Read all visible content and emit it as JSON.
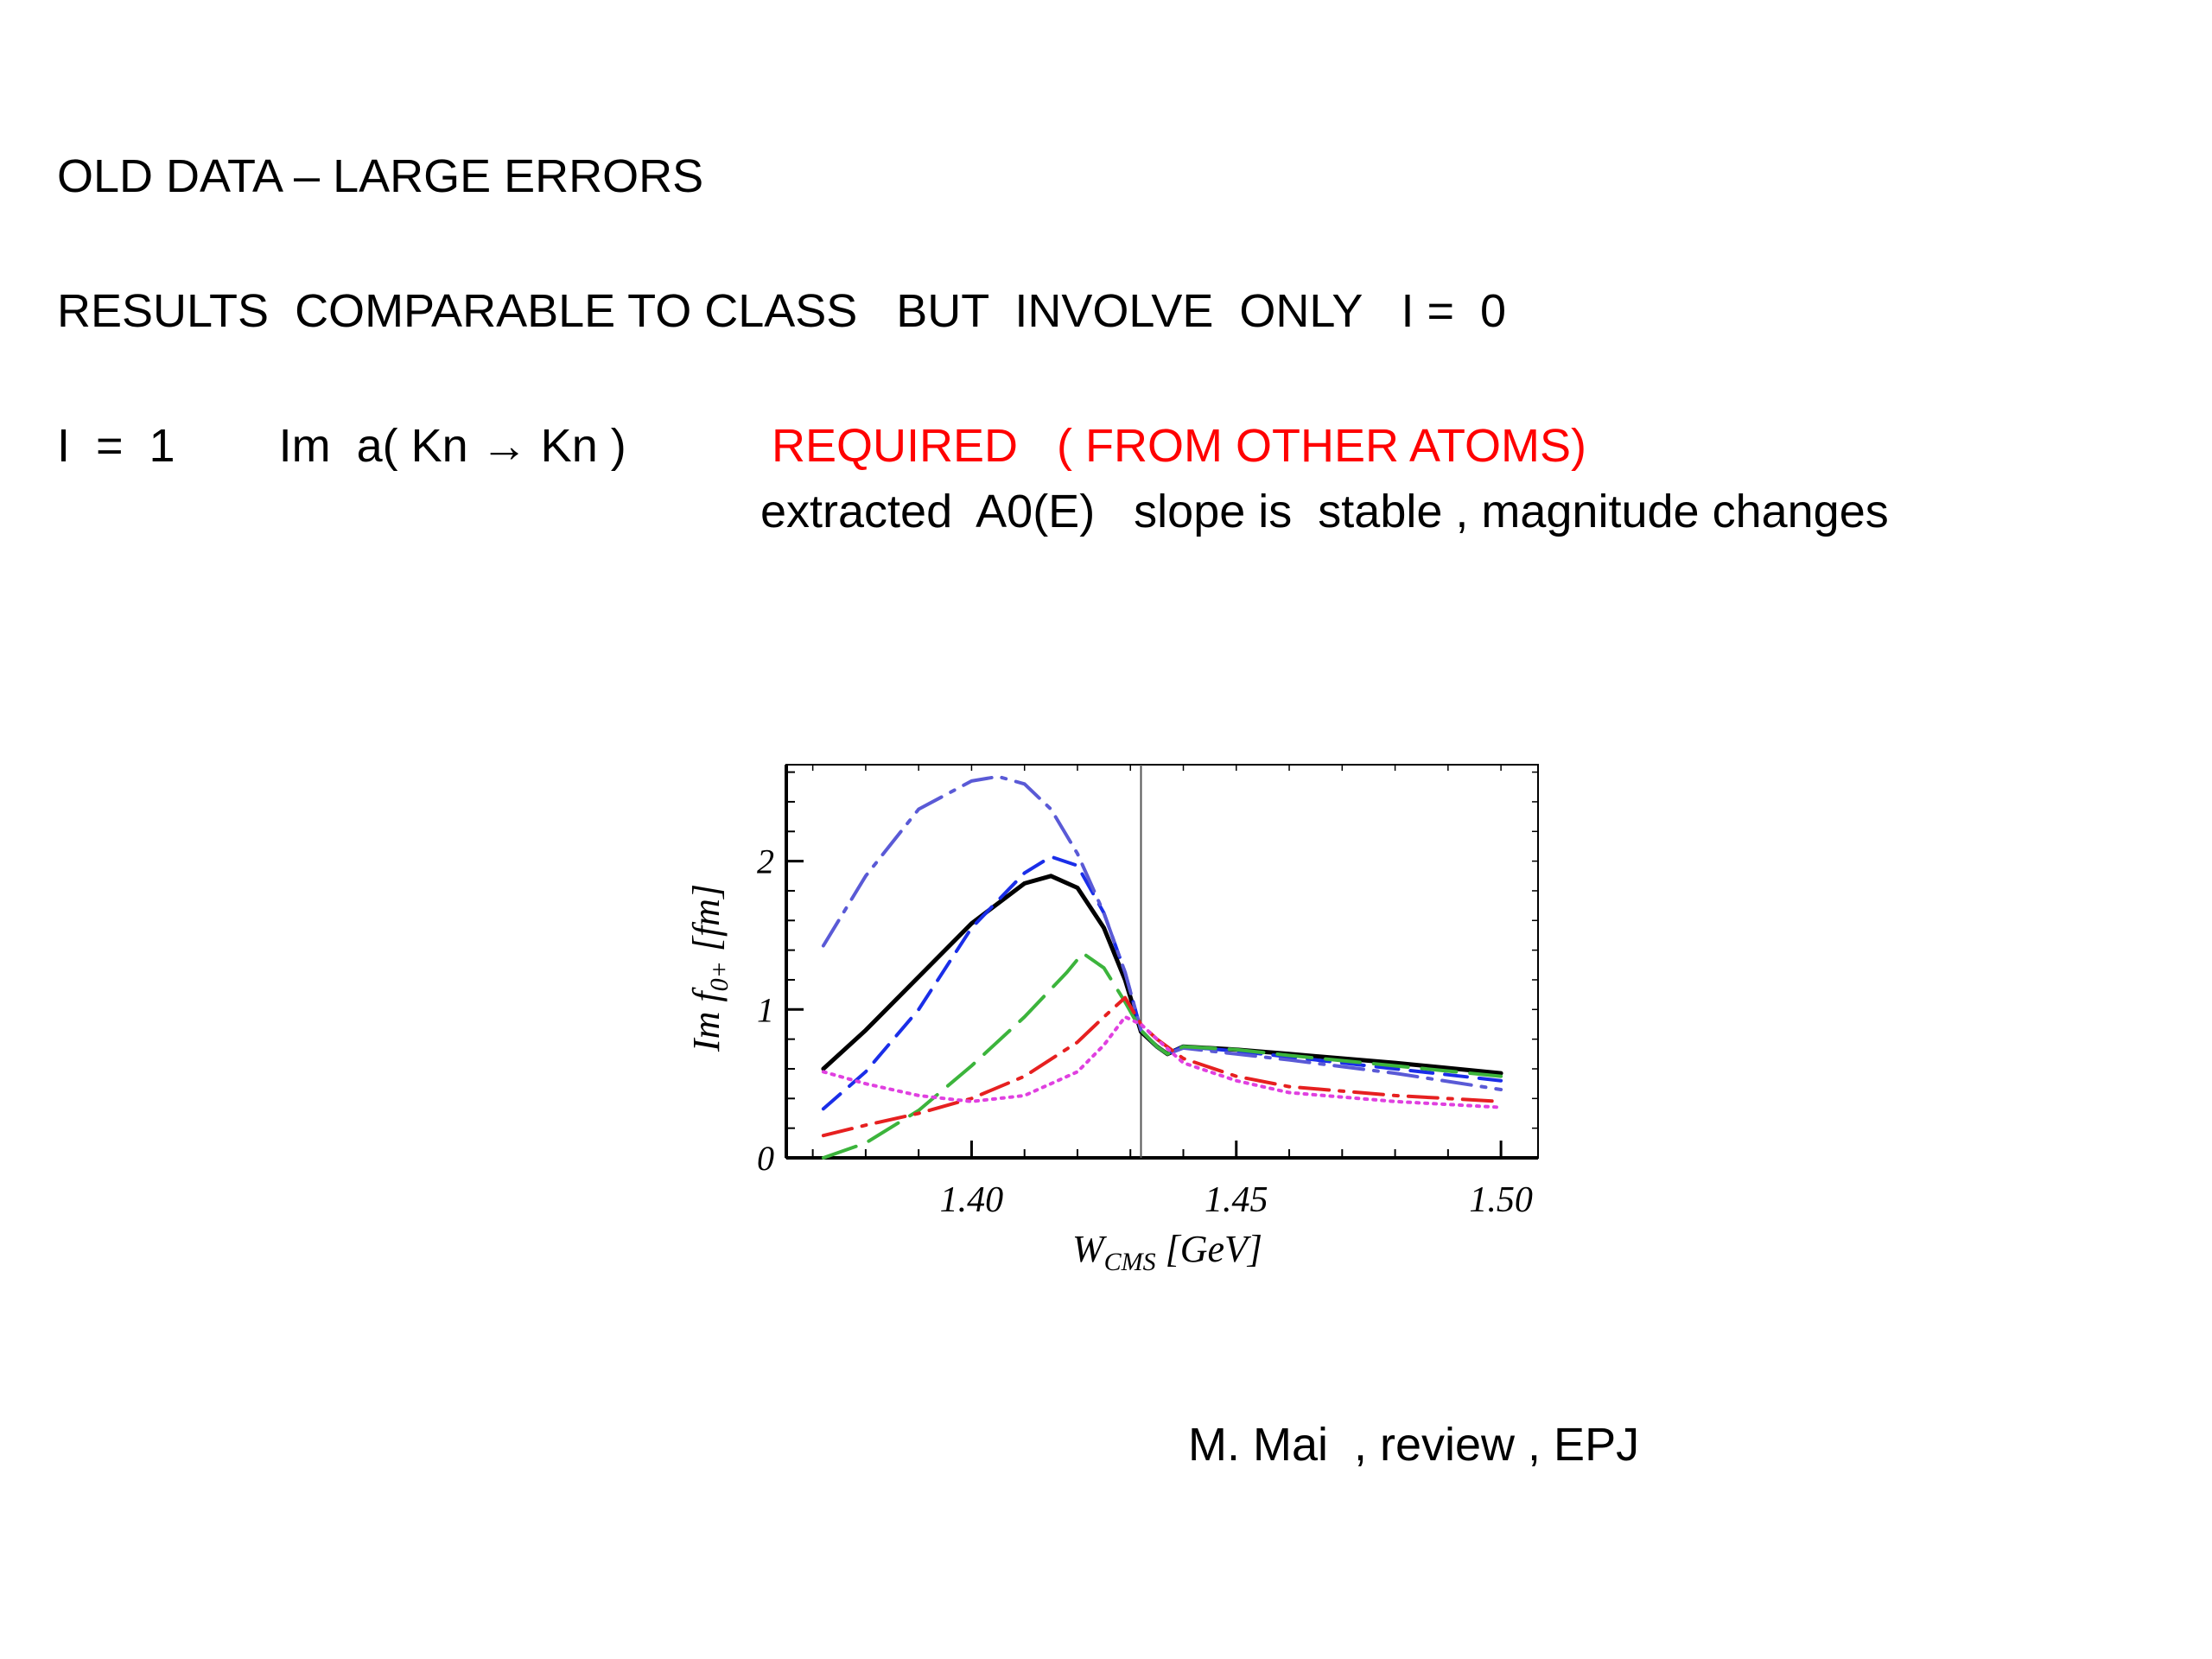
{
  "slide": {
    "line1": "OLD DATA – LARGE ERRORS",
    "line2": "RESULTS  COMPARABLE TO CLASS   BUT  INVOLVE  ONLY   I =  0",
    "line3_left": "I  =  1        Im  a( Kn → Kn )",
    "line3_required": "REQUIRED   ( FROM OTHER ATOMS)",
    "line4": "extracted  A0(E)   slope is  stable , magnitude changes",
    "citation": "M. Mai  , review , EPJ"
  },
  "colors": {
    "text": "#000000",
    "required": "#ff0000",
    "black_solid": "#000000",
    "blue_dashed": "#1a2ee8",
    "slate_dashdot": "#5a5ad6",
    "green_longdash": "#3cb43c",
    "red_dashdot": "#e62020",
    "magenta_dotted": "#e040e0"
  },
  "chart_data": {
    "type": "line",
    "ylabel_prefix": "Im ",
    "ylabel_math": "f",
    "ylabel_sub": "0+",
    "ylabel_suffix": " [fm]",
    "xlabel_main": "W",
    "xlabel_sub": "CMS",
    "xlabel_suffix": " [GeV]",
    "xlim": [
      1.365,
      1.507
    ],
    "ylim": [
      0,
      2.65
    ],
    "xticks": [
      1.4,
      1.45,
      1.5
    ],
    "xtick_labels": [
      "1.40",
      "1.45",
      "1.50"
    ],
    "yticks": [
      0,
      1,
      2
    ],
    "ytick_labels": [
      "0",
      "1",
      "2"
    ],
    "threshold_x": 1.432,
    "series": [
      {
        "style": "solid",
        "color": "#000000",
        "x": [
          1.372,
          1.38,
          1.39,
          1.4,
          1.41,
          1.415,
          1.42,
          1.425,
          1.429,
          1.432,
          1.435,
          1.437,
          1.44,
          1.45,
          1.46,
          1.48,
          1.5
        ],
        "y": [
          0.6,
          0.86,
          1.22,
          1.58,
          1.85,
          1.9,
          1.82,
          1.55,
          1.2,
          0.85,
          0.75,
          0.7,
          0.75,
          0.73,
          0.7,
          0.64,
          0.57
        ]
      },
      {
        "style": "dashed",
        "color": "#1a2ee8",
        "x": [
          1.372,
          1.38,
          1.39,
          1.4,
          1.41,
          1.415,
          1.42,
          1.425,
          1.429,
          1.432,
          1.435,
          1.437,
          1.44,
          1.45,
          1.46,
          1.48,
          1.5
        ],
        "y": [
          0.33,
          0.58,
          1.0,
          1.55,
          1.92,
          2.03,
          1.97,
          1.65,
          1.25,
          0.86,
          0.75,
          0.7,
          0.75,
          0.72,
          0.68,
          0.6,
          0.52
        ]
      },
      {
        "style": "dashdot",
        "color": "#5a5ad6",
        "x": [
          1.372,
          1.38,
          1.39,
          1.4,
          1.405,
          1.41,
          1.415,
          1.42,
          1.425,
          1.429,
          1.432,
          1.435,
          1.437,
          1.44,
          1.45,
          1.46,
          1.48,
          1.5
        ],
        "y": [
          1.43,
          1.9,
          2.35,
          2.54,
          2.57,
          2.52,
          2.35,
          2.05,
          1.65,
          1.25,
          0.86,
          0.75,
          0.7,
          0.74,
          0.7,
          0.66,
          0.57,
          0.46
        ]
      },
      {
        "style": "longdash",
        "color": "#3cb43c",
        "x": [
          1.372,
          1.38,
          1.39,
          1.4,
          1.41,
          1.418,
          1.421,
          1.425,
          1.429,
          1.432,
          1.435,
          1.437,
          1.44,
          1.45,
          1.46,
          1.48,
          1.5
        ],
        "y": [
          0.0,
          0.1,
          0.32,
          0.62,
          0.95,
          1.25,
          1.38,
          1.28,
          1.05,
          0.86,
          0.75,
          0.7,
          0.75,
          0.73,
          0.69,
          0.62,
          0.55
        ]
      },
      {
        "style": "dashdot",
        "color": "#e62020",
        "x": [
          1.372,
          1.38,
          1.39,
          1.4,
          1.41,
          1.42,
          1.425,
          1.429,
          1.432,
          1.435,
          1.44,
          1.45,
          1.46,
          1.48,
          1.5
        ],
        "y": [
          0.15,
          0.22,
          0.3,
          0.4,
          0.55,
          0.78,
          0.95,
          1.08,
          0.9,
          0.8,
          0.67,
          0.55,
          0.48,
          0.42,
          0.38
        ]
      },
      {
        "style": "dotted",
        "color": "#e040e0",
        "x": [
          1.372,
          1.38,
          1.39,
          1.4,
          1.41,
          1.42,
          1.425,
          1.429,
          1.432,
          1.435,
          1.44,
          1.45,
          1.46,
          1.48,
          1.5
        ],
        "y": [
          0.58,
          0.5,
          0.42,
          0.38,
          0.42,
          0.58,
          0.76,
          0.95,
          0.9,
          0.8,
          0.64,
          0.52,
          0.44,
          0.38,
          0.34
        ]
      }
    ]
  }
}
